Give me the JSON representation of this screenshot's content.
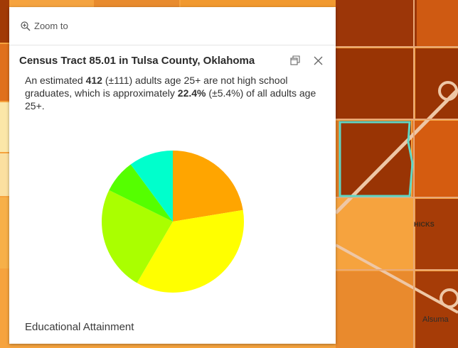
{
  "map": {
    "labels": {
      "hicks": "HICKS",
      "alsuma": "Alsuma"
    },
    "colors": {
      "dark": "#993404",
      "medium": "#d95f0e",
      "light": "#fe9929",
      "pale": "#fec44f",
      "highlight": "#60d6c4"
    }
  },
  "popup": {
    "zoom_label": "Zoom to",
    "title": "Census Tract 85.01 in Tulsa County, Oklahoma",
    "dock_icon": "dock-icon",
    "close_icon": "close-icon",
    "description": {
      "p1": "An estimated ",
      "count": "412",
      "p2": " (±111) adults age 25+ are not high school graduates, which is approximately ",
      "percent": "22.4%",
      "p3": " (±5.4%) of all adults age 25+."
    },
    "chart_title": "Educational Attainment"
  },
  "chart_data": {
    "type": "pie",
    "title": "Educational Attainment",
    "slices": [
      {
        "value": 22.4,
        "color": "#ffa500"
      },
      {
        "value": 36.0,
        "color": "#ffff00"
      },
      {
        "value": 23.9,
        "color": "#aaff00"
      },
      {
        "value": 7.6,
        "color": "#55ff00"
      },
      {
        "value": 10.1,
        "color": "#00ffcc"
      }
    ]
  }
}
